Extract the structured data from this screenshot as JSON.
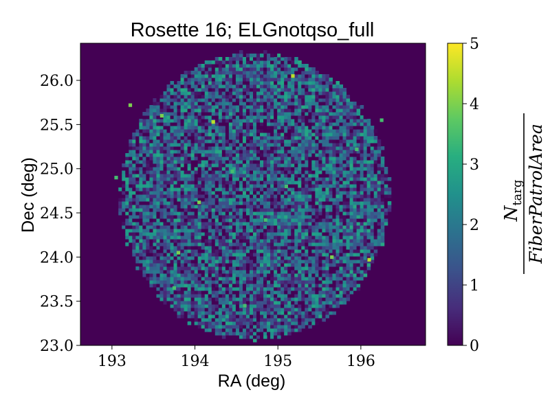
{
  "chart_data": {
    "type": "heatmap",
    "title": "Rosette 16; ELGnotqso_full",
    "xlabel": "RA (deg)",
    "ylabel": "Dec (deg)",
    "xlim": [
      192.62,
      196.78
    ],
    "ylim": [
      23.0,
      26.42
    ],
    "x_ticks": [
      193,
      194,
      195,
      196
    ],
    "x_tick_labels": [
      "193",
      "194",
      "195",
      "196"
    ],
    "y_ticks": [
      23.0,
      23.5,
      24.0,
      24.5,
      25.0,
      25.5,
      26.0
    ],
    "y_tick_labels": [
      "23.0",
      "23.5",
      "24.0",
      "24.5",
      "25.0",
      "25.5",
      "26.0"
    ],
    "grid": false,
    "colormap": "viridis",
    "colorbar": {
      "vmin": 0,
      "vmax": 5,
      "ticks": [
        0,
        1,
        2,
        3,
        4,
        5
      ],
      "tick_labels": [
        "0",
        "1",
        "2",
        "3",
        "4",
        "5"
      ],
      "label_numerator": "N",
      "label_numerator_subscript": "targ",
      "label_denominator": "FiberPatrolArea"
    },
    "footprint": {
      "shape": "circle",
      "center_ra": 194.72,
      "center_dec": 24.69,
      "radius_deg": 1.62
    },
    "typical_value_range": [
      0,
      3
    ],
    "bright_pixels": [
      {
        "ra": 194.05,
        "dec": 24.62,
        "value": 4
      },
      {
        "ra": 194.22,
        "dec": 25.53,
        "value": 4.5
      },
      {
        "ra": 195.18,
        "dec": 26.05,
        "value": 4.5
      },
      {
        "ra": 193.22,
        "dec": 25.72,
        "value": 4
      },
      {
        "ra": 193.6,
        "dec": 25.6,
        "value": 4
      },
      {
        "ra": 195.65,
        "dec": 24.0,
        "value": 4
      },
      {
        "ra": 196.1,
        "dec": 23.97,
        "value": 4.5
      },
      {
        "ra": 193.75,
        "dec": 23.65,
        "value": 3.5
      },
      {
        "ra": 193.8,
        "dec": 24.05,
        "value": 4
      },
      {
        "ra": 194.85,
        "dec": 24.42,
        "value": 3.5
      },
      {
        "ra": 195.1,
        "dec": 24.8,
        "value": 3.5
      },
      {
        "ra": 194.45,
        "dec": 24.97,
        "value": 3.5
      },
      {
        "ra": 196.25,
        "dec": 25.55,
        "value": 3.5
      },
      {
        "ra": 193.05,
        "dec": 24.9,
        "value": 3.5
      },
      {
        "ra": 195.95,
        "dec": 25.22,
        "value": 3.5
      },
      {
        "ra": 194.6,
        "dec": 23.45,
        "value": 3.5
      }
    ]
  }
}
